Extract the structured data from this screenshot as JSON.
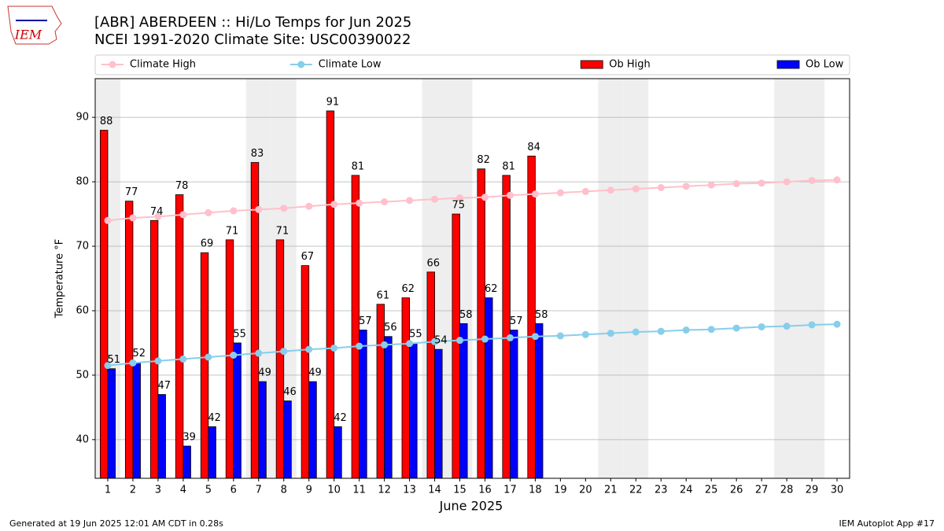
{
  "chart_data": {
    "type": "bar",
    "title": "[ABR] ABERDEEN :: Hi/Lo Temps for Jun 2025",
    "subtitle": "NCEI 1991-2020 Climate Site: USC00390022",
    "logo_text": "IEM",
    "xlabel": "June 2025",
    "ylabel": "Temperature °F",
    "x": [
      1,
      2,
      3,
      4,
      5,
      6,
      7,
      8,
      9,
      10,
      11,
      12,
      13,
      14,
      15,
      16,
      17,
      18,
      19,
      20,
      21,
      22,
      23,
      24,
      25,
      26,
      27,
      28,
      29,
      30
    ],
    "xlim": [
      0.5,
      30.5
    ],
    "xticks": [
      1,
      2,
      3,
      4,
      5,
      6,
      7,
      8,
      9,
      10,
      11,
      12,
      13,
      14,
      15,
      16,
      17,
      18,
      19,
      20,
      21,
      22,
      23,
      24,
      25,
      26,
      27,
      28,
      29,
      30
    ],
    "ylim": [
      34,
      96
    ],
    "yticks": [
      40,
      50,
      60,
      70,
      80,
      90
    ],
    "grid": true,
    "legend": "top",
    "shaded_days": [
      1,
      7,
      8,
      14,
      15,
      21,
      22,
      28,
      29
    ],
    "series": [
      {
        "name": "Climate High",
        "type": "line",
        "color": "#ffc0cb",
        "values": [
          74.0,
          74.4,
          74.6,
          74.9,
          75.2,
          75.5,
          75.7,
          75.9,
          76.2,
          76.5,
          76.7,
          76.9,
          77.1,
          77.3,
          77.5,
          77.6,
          77.9,
          78.1,
          78.3,
          78.5,
          78.7,
          78.9,
          79.1,
          79.3,
          79.5,
          79.7,
          79.8,
          80.0,
          80.2,
          80.3
        ]
      },
      {
        "name": "Climate Low",
        "type": "line",
        "color": "#87ceeb",
        "values": [
          51.5,
          51.9,
          52.2,
          52.5,
          52.8,
          53.1,
          53.4,
          53.7,
          54.0,
          54.2,
          54.5,
          54.7,
          54.9,
          55.2,
          55.4,
          55.6,
          55.8,
          56.0,
          56.1,
          56.3,
          56.5,
          56.7,
          56.8,
          57.0,
          57.1,
          57.3,
          57.5,
          57.6,
          57.8,
          57.9
        ]
      },
      {
        "name": "Ob High",
        "type": "bar",
        "color": "#ff0000",
        "values": [
          88,
          77,
          74,
          78,
          69,
          71,
          83,
          71,
          67,
          91,
          81,
          61,
          62,
          66,
          75,
          82,
          81,
          84,
          null,
          null,
          null,
          null,
          null,
          null,
          null,
          null,
          null,
          null,
          null,
          null
        ]
      },
      {
        "name": "Ob Low",
        "type": "bar",
        "color": "#0000ff",
        "values": [
          51,
          52,
          47,
          39,
          42,
          55,
          49,
          46,
          49,
          42,
          57,
          56,
          55,
          54,
          58,
          62,
          57,
          58,
          null,
          null,
          null,
          null,
          null,
          null,
          null,
          null,
          null,
          null,
          null,
          null
        ]
      }
    ],
    "footer_left": "Generated at 19 Jun 2025 12:01 AM CDT in 0.28s",
    "footer_right": "IEM Autoplot App #17"
  }
}
